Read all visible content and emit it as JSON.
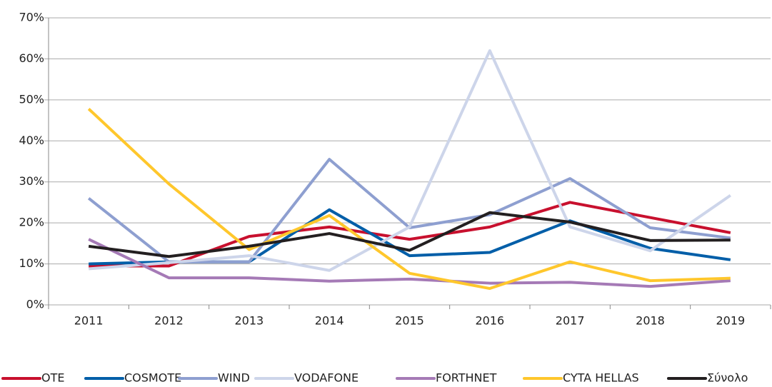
{
  "chart_data": {
    "type": "line",
    "categories": [
      "2011",
      "2012",
      "2013",
      "2014",
      "2015",
      "2016",
      "2017",
      "2018",
      "2019"
    ],
    "series": [
      {
        "name": "OTE",
        "color": "#c8102e",
        "values": [
          9.5,
          9.5,
          16.7,
          19,
          16,
          19,
          25,
          21.3,
          17.6
        ]
      },
      {
        "name": "COSMOTE",
        "color": "#005ea8",
        "values": [
          10,
          10.5,
          10.5,
          23.2,
          12,
          12.8,
          20.5,
          13.8,
          11
        ]
      },
      {
        "name": "WIND",
        "color": "#8e9fd0",
        "values": [
          26,
          10.5,
          10.5,
          35.5,
          18.8,
          22,
          30.8,
          18.8,
          16.3
        ]
      },
      {
        "name": "VODAFONE",
        "color": "#cdd5ea",
        "values": [
          8.8,
          10.3,
          12,
          8.4,
          19,
          62,
          19,
          13.2,
          26.7
        ]
      },
      {
        "name": "FORTHNET",
        "color": "#a57ab6",
        "values": [
          16,
          6.6,
          6.6,
          5.8,
          6.3,
          5.3,
          5.5,
          4.5,
          5.9
        ]
      },
      {
        "name": "CYTA HELLAS",
        "color": "#ffc72c",
        "values": [
          47.8,
          29.5,
          13.5,
          21.8,
          7.7,
          4,
          10.5,
          5.9,
          6.5
        ]
      },
      {
        "name": "Σύνολο",
        "color": "#231f20",
        "values": [
          14.3,
          11.8,
          14.3,
          17.4,
          13.3,
          22.5,
          20.2,
          15.7,
          15.8
        ]
      }
    ],
    "ylim": [
      0,
      70
    ],
    "yticks": [
      {
        "value": 0,
        "label": "0%"
      },
      {
        "value": 10,
        "label": "10%"
      },
      {
        "value": 20,
        "label": "20%"
      },
      {
        "value": 30,
        "label": "30%"
      },
      {
        "value": 40,
        "label": "40%"
      },
      {
        "value": 50,
        "label": "50%"
      },
      {
        "value": 60,
        "label": "60%"
      },
      {
        "value": 70,
        "label": "70%"
      }
    ],
    "grid": true,
    "legend": "bottom"
  }
}
